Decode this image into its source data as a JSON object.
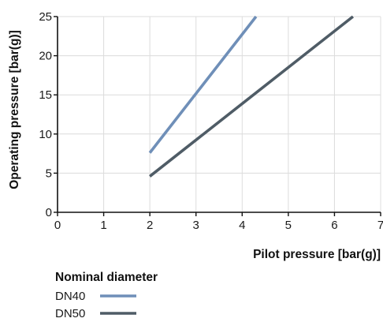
{
  "chart_data": {
    "type": "line",
    "title": "",
    "xlabel": "Pilot pressure [bar(g)]",
    "ylabel": "Operating pressure [bar(g)]",
    "xlim": [
      0,
      7
    ],
    "ylim": [
      0,
      25
    ],
    "x_ticks": [
      0,
      1,
      2,
      3,
      4,
      5,
      6,
      7
    ],
    "y_ticks": [
      0,
      5,
      10,
      15,
      20,
      25
    ],
    "grid": true,
    "legend": {
      "title": "Nominal diameter",
      "placement": "bottom-left"
    },
    "series": [
      {
        "name": "DN40",
        "color": "#6f8fb8",
        "x": [
          2,
          4.3
        ],
        "y": [
          7.6,
          25
        ]
      },
      {
        "name": "DN50",
        "color": "#4f5c66",
        "x": [
          2,
          6.4
        ],
        "y": [
          4.6,
          25
        ]
      }
    ]
  }
}
